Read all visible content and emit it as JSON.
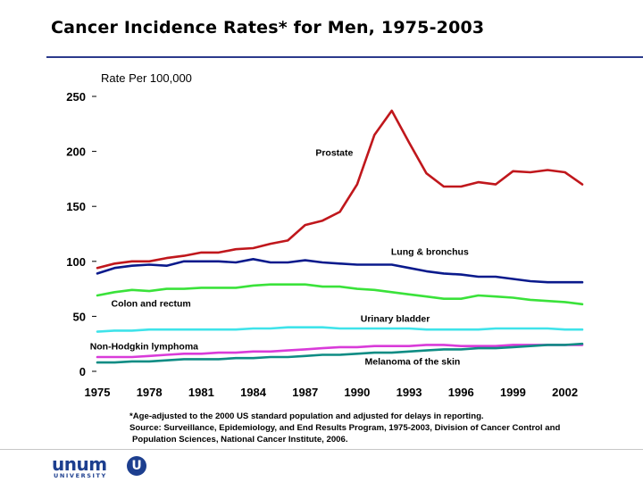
{
  "title": "Cancer Incidence Rates* for Men, 1975-2003",
  "footnote": {
    "line1": "*Age-adjusted to the 2000 US standard population and adjusted for delays in reporting.",
    "line2": "Source: Surveillance, Epidemiology, and End Results Program, 1975-2003, Division of Cancer Control and",
    "line3": "Population Sciences, National Cancer Institute, 2006."
  },
  "logo": {
    "wordmark": "unum",
    "sub": "UNIVERSITY",
    "badge": "U"
  },
  "colors": {
    "prostate": "#c0171c",
    "lung": "#0a1a8c",
    "colon": "#3ae23a",
    "bladder": "#3fe3ea",
    "nhl": "#d93bd9",
    "melanoma": "#0e8c84",
    "accent": "#2b3a8c"
  },
  "chart_data": {
    "type": "line",
    "ylabel": "Rate Per 100,000",
    "ylim": [
      0,
      250
    ],
    "yticks": [
      0,
      50,
      100,
      150,
      200,
      250
    ],
    "xlim": [
      1975,
      2003
    ],
    "xticks": [
      1975,
      1978,
      1981,
      1984,
      1987,
      1990,
      1993,
      1996,
      1999,
      2002
    ],
    "x": [
      1975,
      1976,
      1977,
      1978,
      1979,
      1980,
      1981,
      1982,
      1983,
      1984,
      1985,
      1986,
      1987,
      1988,
      1989,
      1990,
      1991,
      1992,
      1993,
      1994,
      1995,
      1996,
      1997,
      1998,
      1999,
      2000,
      2001,
      2002,
      2003
    ],
    "series": [
      {
        "name": "Prostate",
        "key": "prostate",
        "values": [
          94,
          98,
          100,
          100,
          103,
          105,
          108,
          108,
          111,
          112,
          116,
          119,
          133,
          137,
          145,
          170,
          215,
          237,
          208,
          180,
          168,
          168,
          172,
          170,
          182,
          181,
          183,
          181,
          170
        ]
      },
      {
        "name": "Lung & bronchus",
        "key": "lung",
        "values": [
          89,
          94,
          96,
          97,
          96,
          100,
          100,
          100,
          99,
          102,
          99,
          99,
          101,
          99,
          98,
          97,
          97,
          97,
          94,
          91,
          89,
          88,
          86,
          86,
          84,
          82,
          81,
          81,
          81
        ]
      },
      {
        "name": "Colon and rectum",
        "key": "colon",
        "values": [
          69,
          72,
          74,
          73,
          75,
          75,
          76,
          76,
          76,
          78,
          79,
          79,
          79,
          77,
          77,
          75,
          74,
          72,
          70,
          68,
          66,
          66,
          69,
          68,
          67,
          65,
          64,
          63,
          61
        ]
      },
      {
        "name": "Urinary bladder",
        "key": "bladder",
        "values": [
          36,
          37,
          37,
          38,
          38,
          38,
          38,
          38,
          38,
          39,
          39,
          40,
          40,
          40,
          39,
          39,
          39,
          39,
          39,
          38,
          38,
          38,
          38,
          39,
          39,
          39,
          39,
          38,
          38
        ]
      },
      {
        "name": "Non-Hodgkin lymphoma",
        "key": "nhl",
        "values": [
          13,
          13,
          13,
          14,
          15,
          16,
          16,
          17,
          17,
          18,
          18,
          19,
          20,
          21,
          22,
          22,
          23,
          23,
          23,
          24,
          24,
          23,
          23,
          23,
          24,
          24,
          24,
          24,
          24
        ]
      },
      {
        "name": "Melanoma of the skin",
        "key": "melanoma",
        "values": [
          8,
          8,
          9,
          9,
          10,
          11,
          11,
          11,
          12,
          12,
          13,
          13,
          14,
          15,
          15,
          16,
          17,
          17,
          18,
          19,
          20,
          20,
          21,
          21,
          22,
          23,
          24,
          24,
          25
        ]
      }
    ],
    "labels": {
      "prostate": "Prostate",
      "lung": "Lung & bronchus",
      "colon": "Colon and rectum",
      "bladder": "Urinary bladder",
      "nhl": "Non-Hodgkin lymphoma",
      "melanoma": "Melanoma of the skin"
    },
    "grid": false,
    "legend": "inline labels"
  }
}
